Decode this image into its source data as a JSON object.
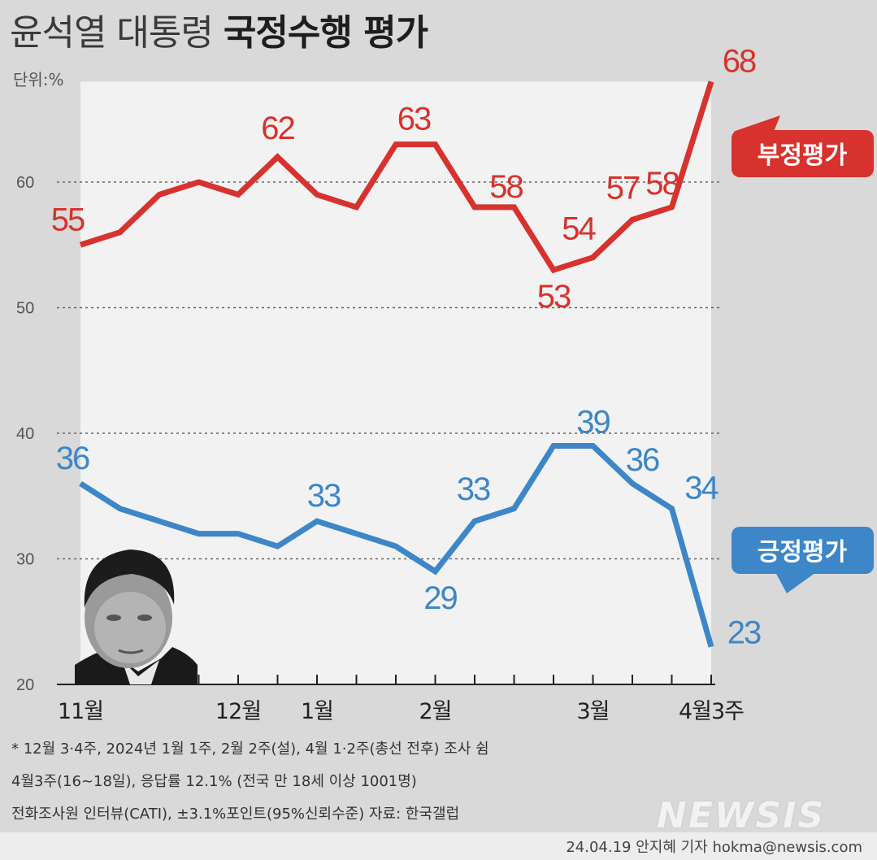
{
  "title": {
    "light": "윤석열 대통령",
    "bold": "국정수행 평가"
  },
  "unit_label": "단위:%",
  "chart_data": {
    "type": "line",
    "title": "윤석열 대통령 국정수행 평가",
    "ylabel": "단위:%",
    "ylim": [
      20,
      70
    ],
    "yticks": [
      20,
      30,
      40,
      50,
      60
    ],
    "grid": true,
    "x_tick_labels": [
      "11월",
      "12월",
      "1월",
      "2월",
      "3월",
      "4월3주"
    ],
    "x_tick_positions": [
      0,
      4,
      6,
      9,
      13,
      16
    ],
    "n_points": 17,
    "series": [
      {
        "name": "부정평가",
        "color": "#d7322d",
        "values": [
          55,
          56,
          59,
          60,
          59,
          62,
          59,
          58,
          63,
          63,
          58,
          58,
          53,
          54,
          57,
          58,
          68
        ],
        "labeled_points": [
          {
            "index": 0,
            "label": "55"
          },
          {
            "index": 5,
            "label": "62"
          },
          {
            "index": 8,
            "label": "63"
          },
          {
            "index": 11,
            "label": "58"
          },
          {
            "index": 12,
            "label": "53"
          },
          {
            "index": 13,
            "label": "54"
          },
          {
            "index": 14,
            "label": "57"
          },
          {
            "index": 15,
            "label": "58"
          },
          {
            "index": 16,
            "label": "68"
          }
        ]
      },
      {
        "name": "긍정평가",
        "color": "#3d86c8",
        "values": [
          36,
          34,
          33,
          32,
          32,
          31,
          33,
          32,
          31,
          29,
          33,
          34,
          39,
          39,
          36,
          34,
          23
        ],
        "labeled_points": [
          {
            "index": 0,
            "label": "36"
          },
          {
            "index": 6,
            "label": "33"
          },
          {
            "index": 9,
            "label": "29"
          },
          {
            "index": 10,
            "label": "33"
          },
          {
            "index": 13,
            "label": "39"
          },
          {
            "index": 14,
            "label": "36"
          },
          {
            "index": 15,
            "label": "34"
          },
          {
            "index": 16,
            "label": "23"
          }
        ]
      }
    ]
  },
  "notes": [
    "* 12월 3·4주, 2024년 1월 1주, 2월 2주(설), 4월 1·2주(총선 전후) 조사 쉼",
    "4월3주(16~18일), 응답률 12.1% (전국 만 18세 이상 1001명)",
    "전화조사원 인터뷰(CATI), ±3.1%포인트(95%신뢰수준)  자료: 한국갤럽"
  ],
  "watermark": "NEWSIS",
  "credit": "24.04.19 안지혜 기자  hokma@newsis.com",
  "icons": {
    "portrait": "person-portrait"
  }
}
